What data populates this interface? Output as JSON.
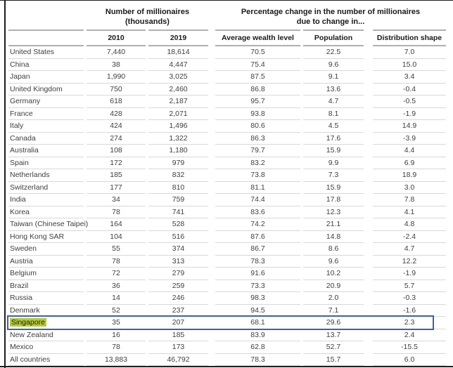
{
  "colors": {
    "frame_border": "#1e1e1e",
    "header_rule": "#b0b0b0",
    "row_rule": "#d8d8d8",
    "highlight_bg": "#b5cb34",
    "highlight_box_border": "#3e5fae",
    "header_text": "#1a1a1a",
    "body_text": "#3f3f3f"
  },
  "table": {
    "group_headers": [
      {
        "line1": "Number of millionaires",
        "line2": "(thousands)"
      },
      {
        "line1": "Percentage change in the number of millionaires",
        "line2": "due to change in..."
      }
    ],
    "columns": [
      "2010",
      "2019",
      "Average wealth level",
      "Population",
      "Distribution shape"
    ]
  },
  "chart_data": {
    "type": "table",
    "column_groups": [
      "Number of millionaires (thousands)",
      "Percentage change in the number of millionaires due to change in..."
    ],
    "columns": [
      "",
      "2010",
      "2019",
      "Average wealth level",
      "Population",
      "Distribution shape"
    ],
    "highlighted_row": "Singapore",
    "rows": [
      [
        "United States",
        "7,440",
        "18,614",
        "70.5",
        "22.5",
        "7.0"
      ],
      [
        "China",
        "38",
        "4,447",
        "75.4",
        "9.6",
        "15.0"
      ],
      [
        "Japan",
        "1,990",
        "3,025",
        "87.5",
        "9.1",
        "3.4"
      ],
      [
        "United Kingdom",
        "750",
        "2,460",
        "86.8",
        "13.6",
        "-0.4"
      ],
      [
        "Germany",
        "618",
        "2,187",
        "95.7",
        "4.7",
        "-0.5"
      ],
      [
        "France",
        "428",
        "2,071",
        "93.8",
        "8.1",
        "-1.9"
      ],
      [
        "Italy",
        "424",
        "1,496",
        "80.6",
        "4.5",
        "14.9"
      ],
      [
        "Canada",
        "274",
        "1,322",
        "86.3",
        "17.6",
        "-3.9"
      ],
      [
        "Australia",
        "108",
        "1,180",
        "79.7",
        "15.9",
        "4.4"
      ],
      [
        "Spain",
        "172",
        "979",
        "83.2",
        "9.9",
        "6.9"
      ],
      [
        "Netherlands",
        "185",
        "832",
        "73.8",
        "7.3",
        "18.9"
      ],
      [
        "Switzerland",
        "177",
        "810",
        "81.1",
        "15.9",
        "3.0"
      ],
      [
        "India",
        "34",
        "759",
        "74.4",
        "17.8",
        "7.8"
      ],
      [
        "Korea",
        "78",
        "741",
        "83.6",
        "12.3",
        "4.1"
      ],
      [
        "Taiwan (Chinese Taipei)",
        "164",
        "528",
        "74.2",
        "21.1",
        "4.8"
      ],
      [
        "Hong Kong SAR",
        "104",
        "516",
        "87.6",
        "14.8",
        "-2.4"
      ],
      [
        "Sweden",
        "55",
        "374",
        "86.7",
        "8.6",
        "4.7"
      ],
      [
        "Austria",
        "78",
        "313",
        "78.3",
        "9.6",
        "12.2"
      ],
      [
        "Belgium",
        "72",
        "279",
        "91.6",
        "10.2",
        "-1.9"
      ],
      [
        "Brazil",
        "36",
        "259",
        "73.3",
        "20.9",
        "5.7"
      ],
      [
        "Russia",
        "14",
        "246",
        "98.3",
        "2.0",
        "-0.3"
      ],
      [
        "Denmark",
        "52",
        "237",
        "94.5",
        "7.1",
        "-1.6"
      ],
      [
        "Singapore",
        "35",
        "207",
        "68.1",
        "29.6",
        "2.3"
      ],
      [
        "New Zealand",
        "16",
        "185",
        "83.9",
        "13.7",
        "2.4"
      ],
      [
        "Mexico",
        "78",
        "173",
        "62.8",
        "52.7",
        "-15.5"
      ],
      [
        "All countries",
        "13,883",
        "46,792",
        "78.3",
        "15.7",
        "6.0"
      ]
    ]
  }
}
